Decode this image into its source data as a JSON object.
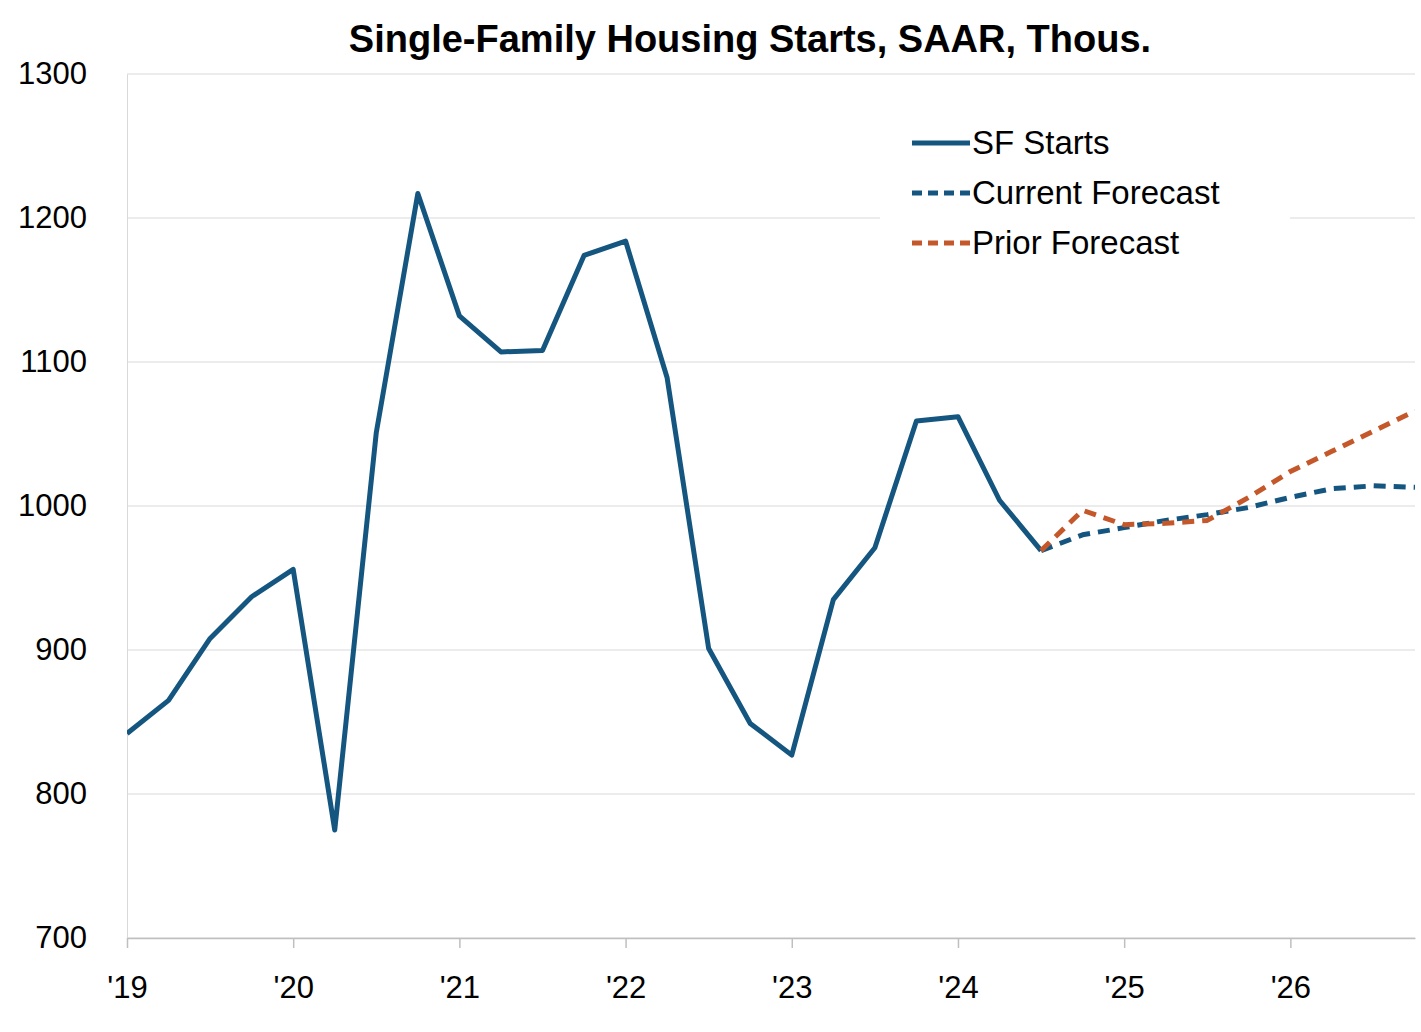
{
  "chart_data": {
    "type": "line",
    "title": "Single-Family Housing Starts, SAAR, Thous.",
    "x": [
      2019,
      2019.25,
      2019.5,
      2019.75,
      2020,
      2020.25,
      2020.5,
      2020.75,
      2021,
      2021.25,
      2021.5,
      2021.75,
      2022,
      2022.25,
      2022.5,
      2022.75,
      2023,
      2023.25,
      2023.5,
      2023.75,
      2024,
      2024.25,
      2024.5,
      2024.75,
      2025,
      2025.25,
      2025.5,
      2025.75,
      2026,
      2026.25,
      2026.5,
      2026.75
    ],
    "series": [
      {
        "name": "SF Starts",
        "color": "#155680",
        "line_style": "solid",
        "values": [
          842,
          865,
          908,
          937,
          956,
          775,
          1051,
          1217,
          1132,
          1107,
          1108,
          1174,
          1184,
          1089,
          901,
          849,
          827,
          935,
          971,
          1059,
          1062,
          1004,
          969,
          null,
          null,
          null,
          null,
          null,
          null,
          null,
          null,
          null
        ]
      },
      {
        "name": "Current Forecast",
        "color": "#155680",
        "line_style": "dashed",
        "values": [
          null,
          null,
          null,
          null,
          null,
          null,
          null,
          null,
          null,
          null,
          null,
          null,
          null,
          null,
          null,
          null,
          null,
          null,
          null,
          null,
          null,
          null,
          969,
          980,
          985,
          990,
          994,
          999,
          1006,
          1012,
          1014,
          1013
        ]
      },
      {
        "name": "Prior Forecast",
        "color": "#c4582a",
        "line_style": "dashed",
        "values": [
          null,
          null,
          null,
          null,
          null,
          null,
          null,
          null,
          null,
          null,
          null,
          null,
          null,
          null,
          null,
          null,
          null,
          null,
          null,
          null,
          null,
          null,
          969,
          997,
          987,
          988,
          990,
          1006,
          1024,
          1038,
          1052,
          1066
        ]
      }
    ],
    "xlim": [
      2019,
      2026.75
    ],
    "xticks": [
      {
        "value": 2019,
        "label": "'19"
      },
      {
        "value": 2020,
        "label": "'20"
      },
      {
        "value": 2021,
        "label": "'21"
      },
      {
        "value": 2022,
        "label": "'22"
      },
      {
        "value": 2023,
        "label": "'23"
      },
      {
        "value": 2024,
        "label": "'24"
      },
      {
        "value": 2025,
        "label": "'25"
      },
      {
        "value": 2026,
        "label": "'26"
      }
    ],
    "ylim": [
      700,
      1300
    ],
    "yticks": [
      700,
      800,
      900,
      1000,
      1100,
      1200,
      1300
    ],
    "grid": true,
    "legend": "upper right"
  }
}
